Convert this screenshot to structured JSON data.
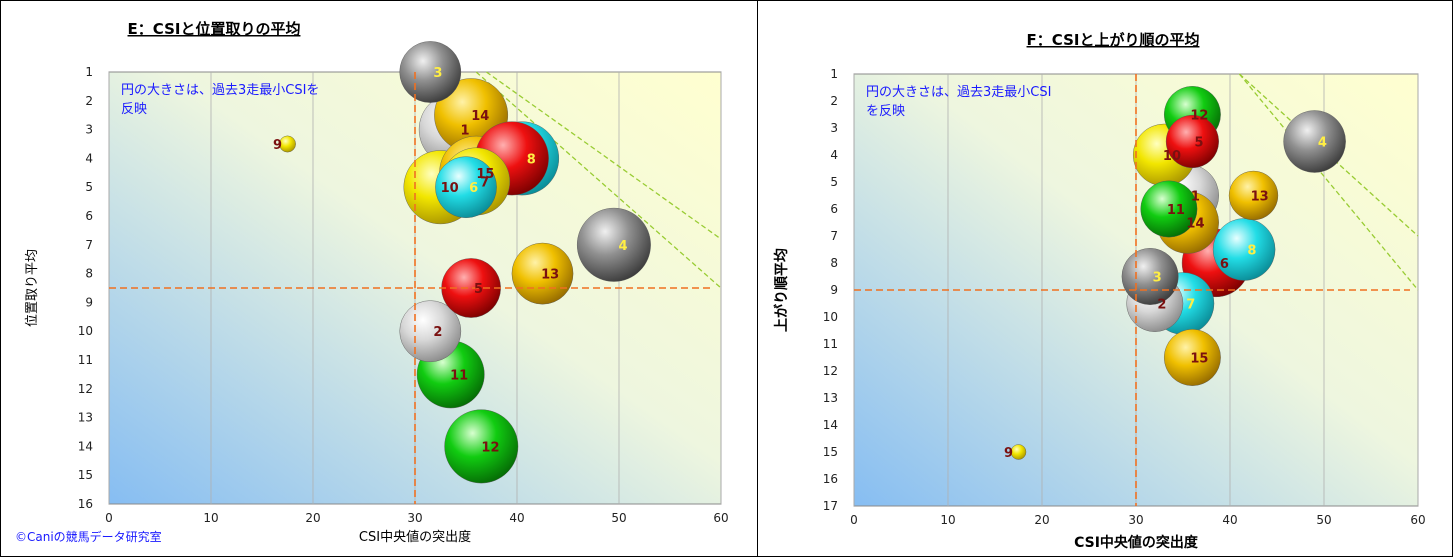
{
  "chart_data": [
    {
      "type": "scatter",
      "title": "E：CSIと位置取りの平均",
      "xlabel": "CSI中央値の突出度",
      "ylabel": "位置取り平均",
      "xlim": [
        0,
        60
      ],
      "ylim": [
        16,
        1
      ],
      "y_inverted": true,
      "x_ticks": [
        0,
        10,
        20,
        30,
        40,
        50,
        60
      ],
      "y_ticks": [
        1,
        2,
        3,
        4,
        5,
        6,
        7,
        8,
        9,
        10,
        11,
        12,
        13,
        14,
        15,
        16
      ],
      "note_lines": [
        "円の大きさは、過去3走最小CSIを",
        "反映"
      ],
      "credit": "©Caniの競馬データ研究室",
      "ref_x": 30,
      "ref_y": 8.5,
      "trend_lines": [
        [
          [
            37,
            1
          ],
          [
            60,
            6.8
          ]
        ],
        [
          [
            36,
            1
          ],
          [
            60,
            8.5
          ]
        ]
      ],
      "points": [
        {
          "label": "1",
          "x": 34,
          "y": 3,
          "r": 3.6,
          "color": "white"
        },
        {
          "label": "2",
          "x": 31.5,
          "y": 10,
          "r": 3.0,
          "color": "white"
        },
        {
          "label": "3",
          "x": 31.5,
          "y": 1,
          "r": 3.0,
          "color": "gray"
        },
        {
          "label": "4",
          "x": 49.5,
          "y": 7,
          "r": 3.6,
          "color": "gray"
        },
        {
          "label": "5",
          "x": 35.5,
          "y": 8.5,
          "r": 2.9,
          "color": "red"
        },
        {
          "label": "6",
          "x": 35,
          "y": 5,
          "r": 3.0,
          "color": "cyan"
        },
        {
          "label": "7",
          "x": 36,
          "y": 4.8,
          "r": 3.3,
          "color": "yellow"
        },
        {
          "label": "8",
          "x": 40.5,
          "y": 4,
          "r": 3.6,
          "color": "cyan"
        },
        {
          "label": "9",
          "x": 17.5,
          "y": 3.5,
          "r": 0.8,
          "color": "yellow"
        },
        {
          "label": "10",
          "x": 32.5,
          "y": 5,
          "r": 3.6,
          "color": "yellow"
        },
        {
          "label": "11",
          "x": 33.5,
          "y": 11.5,
          "r": 3.3,
          "color": "green"
        },
        {
          "label": "12",
          "x": 36.5,
          "y": 14,
          "r": 3.6,
          "color": "green"
        },
        {
          "label": "13",
          "x": 42.5,
          "y": 8,
          "r": 3.0,
          "color": "gold"
        },
        {
          "label": "14",
          "x": 35.5,
          "y": 2.5,
          "r": 3.6,
          "color": "gold"
        },
        {
          "label": "15",
          "x": 36,
          "y": 4.5,
          "r": 3.6,
          "color": "gold"
        },
        {
          "label": "",
          "x": 39.5,
          "y": 4,
          "r": 3.6,
          "color": "red"
        }
      ]
    },
    {
      "type": "scatter",
      "title": "F：CSIと上がり順の平均",
      "xlabel": "CSI中央値の突出度",
      "ylabel": "上がり順平均",
      "xlim": [
        0,
        60
      ],
      "ylim": [
        17,
        1
      ],
      "y_inverted": true,
      "x_ticks": [
        0,
        10,
        20,
        30,
        40,
        50,
        60
      ],
      "y_ticks": [
        1,
        2,
        3,
        4,
        5,
        6,
        7,
        8,
        9,
        10,
        11,
        12,
        13,
        14,
        15,
        16,
        17
      ],
      "note_lines": [
        "円の大きさは、過去3走最小CSI",
        "を反映"
      ],
      "ref_x": 30,
      "ref_y": 9,
      "trend_lines": [
        [
          [
            41,
            1
          ],
          [
            60,
            7
          ]
        ],
        [
          [
            41,
            1
          ],
          [
            60,
            9
          ]
        ]
      ],
      "points": [
        {
          "label": "1",
          "x": 35.5,
          "y": 5.5,
          "r": 3.3,
          "color": "white"
        },
        {
          "label": "2",
          "x": 32,
          "y": 9.5,
          "r": 3.0,
          "color": "white"
        },
        {
          "label": "3",
          "x": 31.5,
          "y": 8.5,
          "r": 3.0,
          "color": "gray"
        },
        {
          "label": "4",
          "x": 49,
          "y": 3.5,
          "r": 3.3,
          "color": "gray"
        },
        {
          "label": "5",
          "x": 36,
          "y": 3.5,
          "r": 2.8,
          "color": "red"
        },
        {
          "label": "6",
          "x": 38.5,
          "y": 8,
          "r": 3.6,
          "color": "red"
        },
        {
          "label": "7",
          "x": 35,
          "y": 9.5,
          "r": 3.3,
          "color": "cyan"
        },
        {
          "label": "8",
          "x": 41.5,
          "y": 7.5,
          "r": 3.3,
          "color": "cyan"
        },
        {
          "label": "9",
          "x": 17.5,
          "y": 15,
          "r": 0.8,
          "color": "yellow"
        },
        {
          "label": "10",
          "x": 33,
          "y": 4,
          "r": 3.3,
          "color": "yellow"
        },
        {
          "label": "11",
          "x": 33.5,
          "y": 6,
          "r": 3.0,
          "color": "green"
        },
        {
          "label": "12",
          "x": 36,
          "y": 2.5,
          "r": 3.0,
          "color": "green"
        },
        {
          "label": "13",
          "x": 42.5,
          "y": 5.5,
          "r": 2.6,
          "color": "gold"
        },
        {
          "label": "14",
          "x": 35.5,
          "y": 6.5,
          "r": 3.3,
          "color": "gold"
        },
        {
          "label": "15",
          "x": 36,
          "y": 11.5,
          "r": 3.0,
          "color": "gold"
        }
      ]
    }
  ],
  "colors": {
    "plot_bg_light": "#ffffd0",
    "plot_bg_dark": "#86bdf2",
    "ref_line": "#f07020",
    "trend_line": "#99cc33",
    "grid": "#b0b0b0",
    "note_text": "#1a1aff",
    "label_dark": "#7a1010",
    "label_light": "#ffee44"
  }
}
